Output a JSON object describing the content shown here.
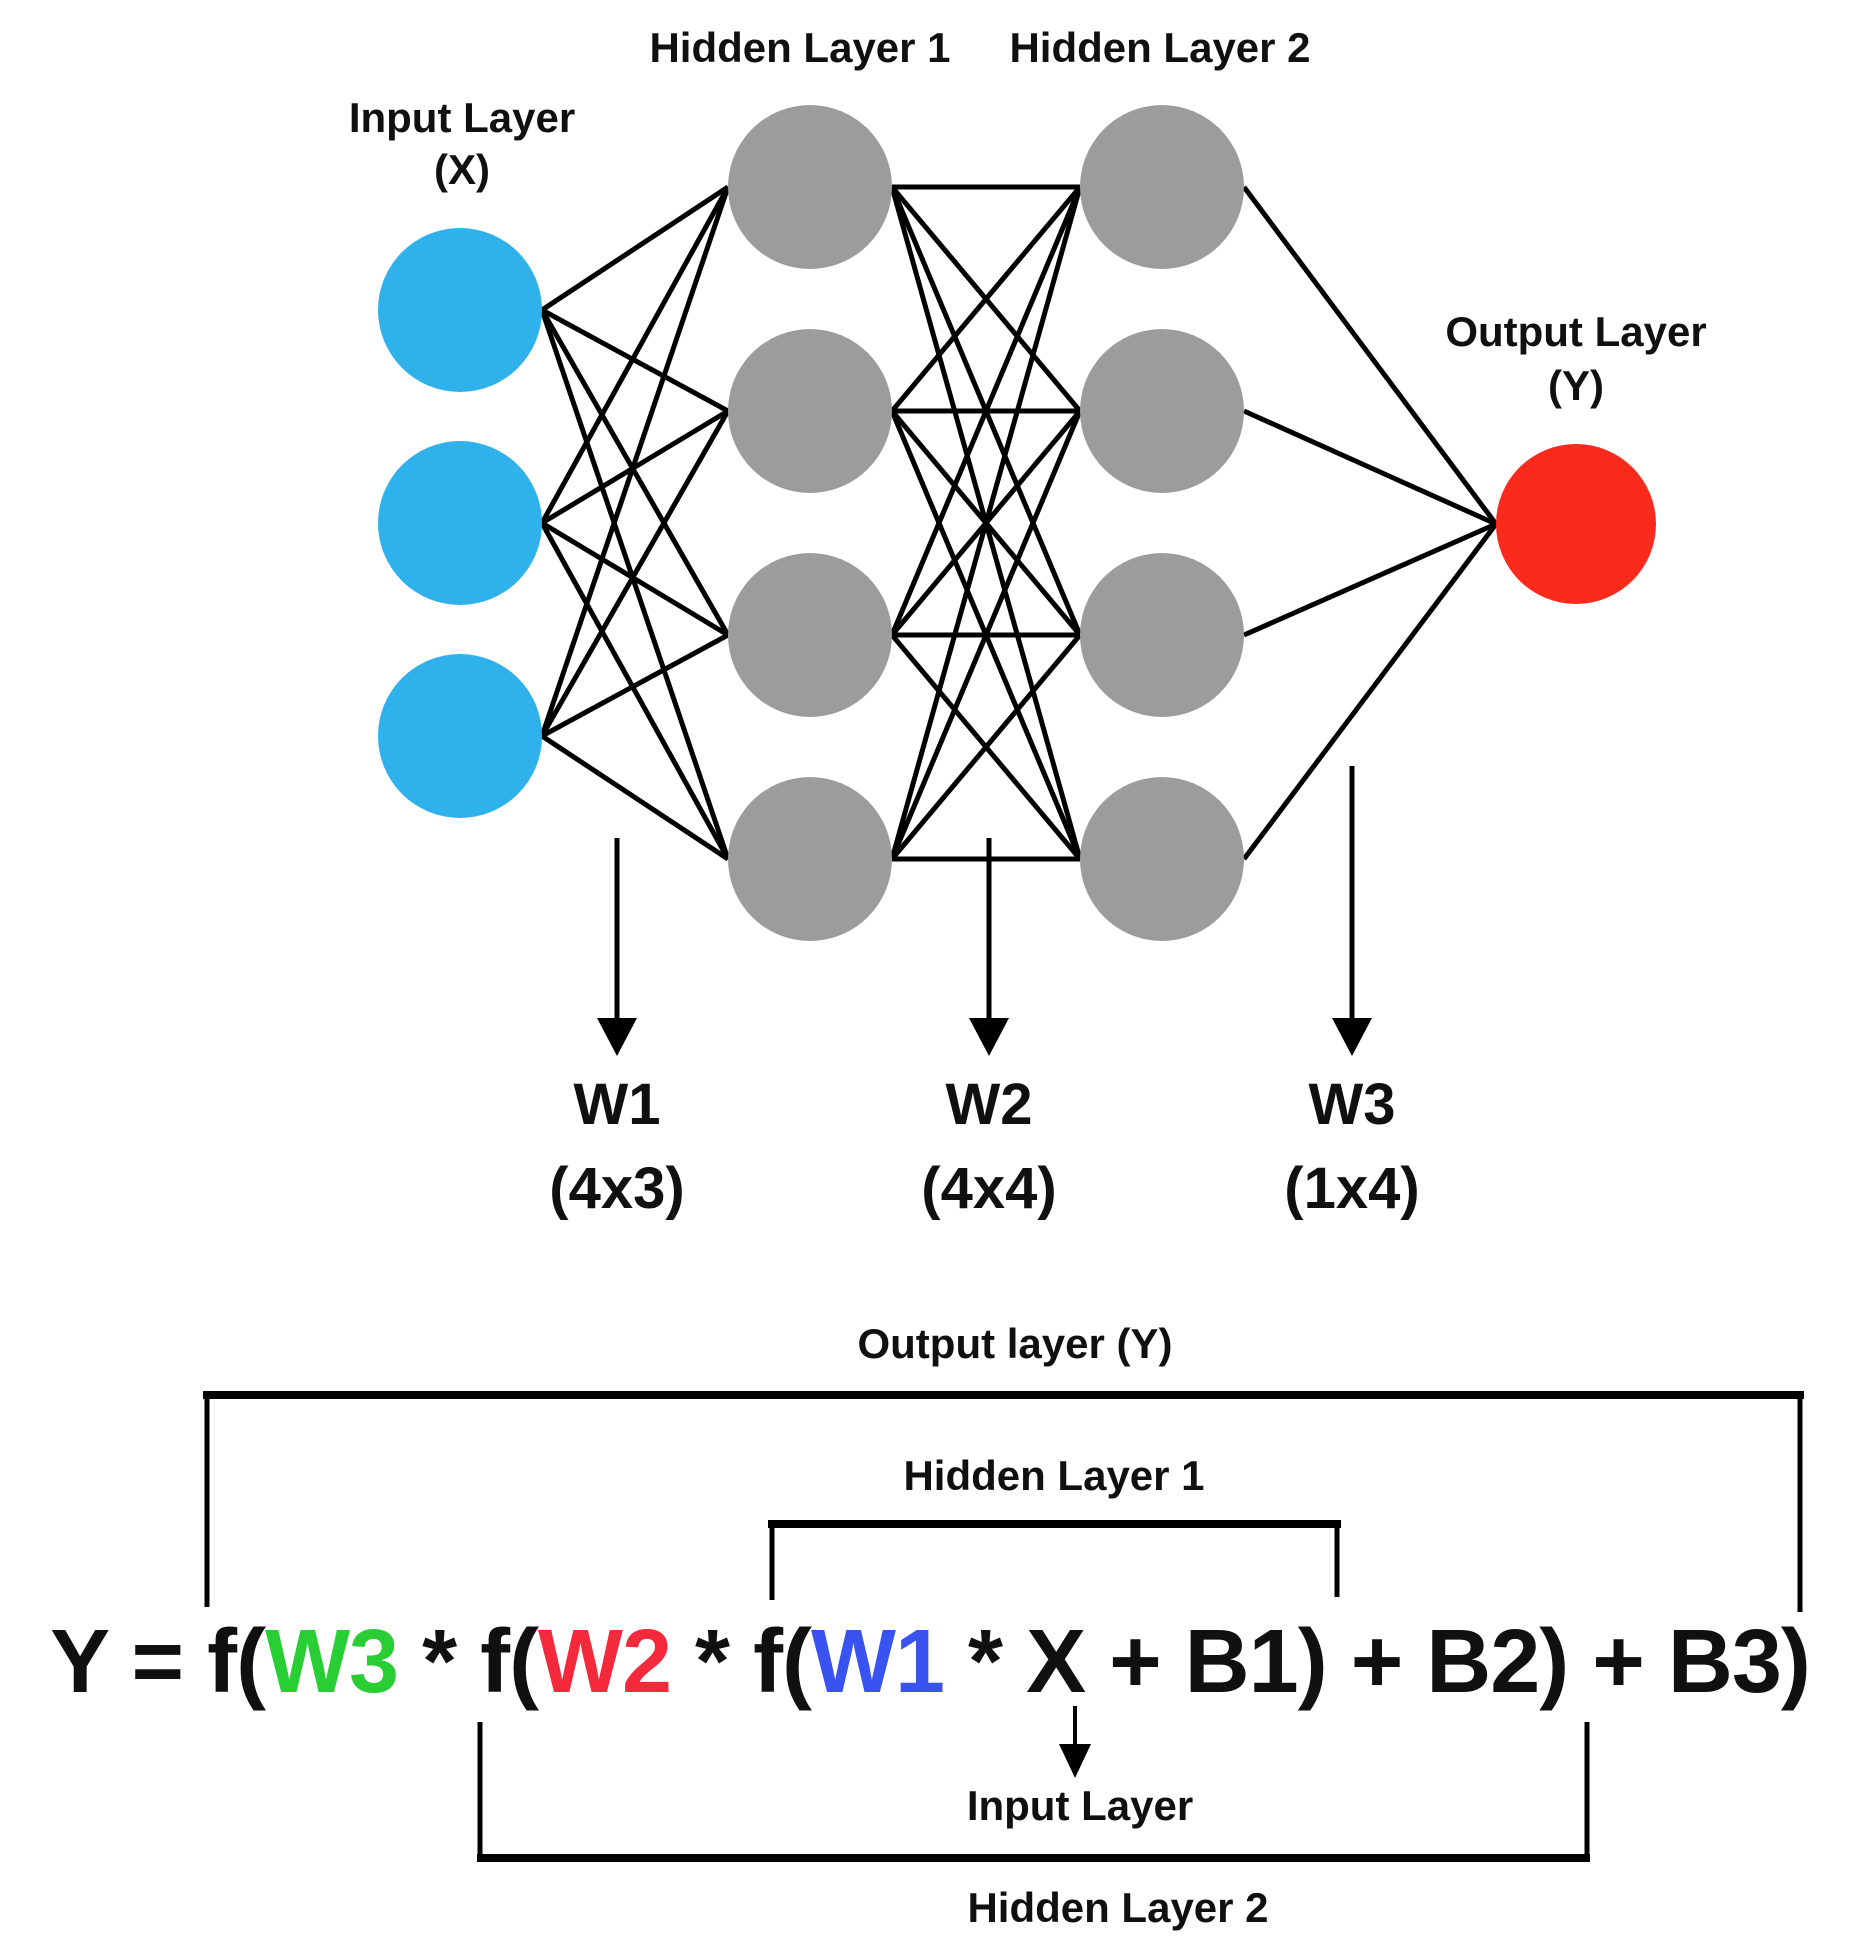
{
  "diagram": {
    "titles": {
      "input_line1": "Input Layer",
      "input_line2": "(X)",
      "hidden1": "Hidden Layer 1",
      "hidden2": "Hidden Layer 2",
      "output_line1": "Output Layer",
      "output_line2": "(Y)"
    },
    "network": {
      "layers": [
        {
          "id": "input",
          "label": "Input Layer (X)",
          "count": 3,
          "color_key": "node-blue"
        },
        {
          "id": "hidden1",
          "label": "Hidden Layer 1",
          "count": 4,
          "color_key": "node-gray"
        },
        {
          "id": "hidden2",
          "label": "Hidden Layer 2",
          "count": 4,
          "color_key": "node-gray"
        },
        {
          "id": "output",
          "label": "Output Layer (Y)",
          "count": 1,
          "color_key": "node-red"
        }
      ]
    },
    "weights": [
      {
        "name": "W1",
        "dims": "(4x3)",
        "color_key": "w1-blue"
      },
      {
        "name": "W2",
        "dims": "(4x4)",
        "color_key": "w2-red"
      },
      {
        "name": "W3",
        "dims": "(1x4)",
        "color_key": "w3-green"
      }
    ],
    "formula": {
      "segments": [
        {
          "text": "Y = f(",
          "color_key": "ink"
        },
        {
          "text": "W3",
          "color_key": "w3-green"
        },
        {
          "text": " * f(",
          "color_key": "ink"
        },
        {
          "text": "W2",
          "color_key": "w2-red"
        },
        {
          "text": " * f(",
          "color_key": "ink"
        },
        {
          "text": "W1",
          "color_key": "w1-blue"
        },
        {
          "text": " * X + B1) + B2) + B3)",
          "color_key": "ink"
        }
      ]
    },
    "annotations": {
      "output_bracket": "Output layer (Y)",
      "hidden1_bracket": "Hidden Layer 1",
      "input_arrow": "Input Layer",
      "hidden2_bracket": "Hidden Layer 2"
    }
  },
  "colors": {
    "node-blue": "#2FB1EC",
    "node-gray": "#9C9C9C",
    "node-red": "#FA2A1D",
    "w1-blue": "#3853EF",
    "w2-red": "#F42A3C",
    "w3-green": "#28CE33",
    "ink": "#101010"
  }
}
